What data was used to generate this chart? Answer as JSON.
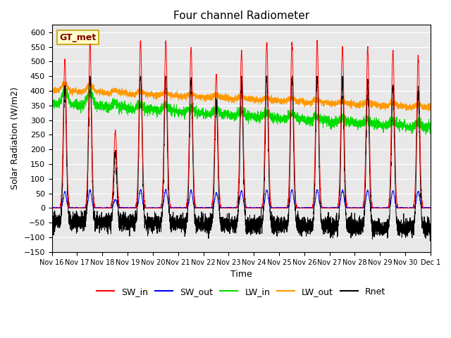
{
  "title": "Four channel Radiometer",
  "xlabel": "Time",
  "ylabel": "Solar Radiation (W/m2)",
  "annotation": "GT_met",
  "ylim": [
    -150,
    625
  ],
  "yticks": [
    -150,
    -100,
    -50,
    0,
    50,
    100,
    150,
    200,
    250,
    300,
    350,
    400,
    450,
    500,
    550,
    600
  ],
  "xtick_labels": [
    "Nov 16",
    "Nov 17",
    "Nov 18",
    "Nov 19",
    "Nov 20",
    "Nov 21",
    "Nov 22",
    "Nov 23",
    "Nov 24",
    "Nov 25",
    "Nov 26",
    "Nov 27",
    "Nov 28",
    "Nov 29",
    "Nov 30",
    "Dec 1"
  ],
  "colors": {
    "SW_in": "#ff0000",
    "SW_out": "#0000ff",
    "LW_in": "#00dd00",
    "LW_out": "#ff9900",
    "Rnet": "#000000"
  },
  "bg_color": "#e8e8e8",
  "grid_color": "#ffffff",
  "annotation_box_color": "#ffffcc",
  "annotation_text_color": "#800000",
  "annotation_border_color": "#cc9900",
  "sw_peaks": [
    510,
    555,
    260,
    570,
    565,
    545,
    460,
    535,
    565,
    565,
    570,
    550,
    545,
    535,
    520
  ],
  "days": 15
}
